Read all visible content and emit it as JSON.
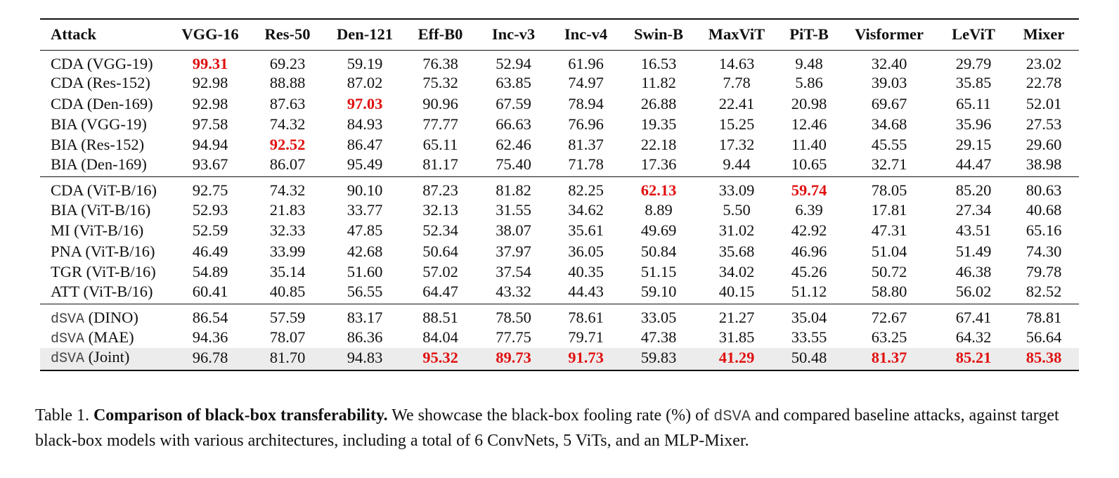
{
  "table": {
    "headers": [
      "Attack",
      "VGG-16",
      "Res-50",
      "Den-121",
      "Eff-B0",
      "Inc-v3",
      "Inc-v4",
      "Swin-B",
      "MaxViT",
      "PiT-B",
      "Visformer",
      "LeViT",
      "Mixer"
    ],
    "groups": [
      [
        {
          "name": "CDA (VGG-19)",
          "values": [
            "99.31",
            "69.23",
            "59.19",
            "76.38",
            "52.94",
            "61.96",
            "16.53",
            "14.63",
            "9.48",
            "32.40",
            "29.79",
            "23.02"
          ],
          "best": [
            0
          ]
        },
        {
          "name": "CDA (Res-152)",
          "values": [
            "92.98",
            "88.88",
            "87.02",
            "75.32",
            "63.85",
            "74.97",
            "11.82",
            "7.78",
            "5.86",
            "39.03",
            "35.85",
            "22.78"
          ],
          "best": []
        },
        {
          "name": "CDA (Den-169)",
          "values": [
            "92.98",
            "87.63",
            "97.03",
            "90.96",
            "67.59",
            "78.94",
            "26.88",
            "22.41",
            "20.98",
            "69.67",
            "65.11",
            "52.01"
          ],
          "best": [
            2
          ]
        },
        {
          "name": "BIA (VGG-19)",
          "values": [
            "97.58",
            "74.32",
            "84.93",
            "77.77",
            "66.63",
            "76.96",
            "19.35",
            "15.25",
            "12.46",
            "34.68",
            "35.96",
            "27.53"
          ],
          "best": []
        },
        {
          "name": "BIA (Res-152)",
          "values": [
            "94.94",
            "92.52",
            "86.47",
            "65.11",
            "62.46",
            "81.37",
            "22.18",
            "17.32",
            "11.40",
            "45.55",
            "29.15",
            "29.60"
          ],
          "best": [
            1
          ]
        },
        {
          "name": "BIA (Den-169)",
          "values": [
            "93.67",
            "86.07",
            "95.49",
            "81.17",
            "75.40",
            "71.78",
            "17.36",
            "9.44",
            "10.65",
            "32.71",
            "44.47",
            "38.98"
          ],
          "best": []
        }
      ],
      [
        {
          "name": "CDA (ViT-B/16)",
          "values": [
            "92.75",
            "74.32",
            "90.10",
            "87.23",
            "81.82",
            "82.25",
            "62.13",
            "33.09",
            "59.74",
            "78.05",
            "85.20",
            "80.63"
          ],
          "best": [
            6,
            8
          ]
        },
        {
          "name": "BIA (ViT-B/16)",
          "values": [
            "52.93",
            "21.83",
            "33.77",
            "32.13",
            "31.55",
            "34.62",
            "8.89",
            "5.50",
            "6.39",
            "17.81",
            "27.34",
            "40.68"
          ],
          "best": []
        },
        {
          "name": "MI (ViT-B/16)",
          "values": [
            "52.59",
            "32.33",
            "47.85",
            "52.34",
            "38.07",
            "35.61",
            "49.69",
            "31.02",
            "42.92",
            "47.31",
            "43.51",
            "65.16"
          ],
          "best": []
        },
        {
          "name": "PNA (ViT-B/16)",
          "values": [
            "46.49",
            "33.99",
            "42.68",
            "50.64",
            "37.97",
            "36.05",
            "50.84",
            "35.68",
            "46.96",
            "51.04",
            "51.49",
            "74.30"
          ],
          "best": []
        },
        {
          "name": "TGR (ViT-B/16)",
          "values": [
            "54.89",
            "35.14",
            "51.60",
            "57.02",
            "37.54",
            "40.35",
            "51.15",
            "34.02",
            "45.26",
            "50.72",
            "46.38",
            "79.78"
          ],
          "best": []
        },
        {
          "name": "ATT (ViT-B/16)",
          "values": [
            "60.41",
            "40.85",
            "56.55",
            "64.47",
            "43.32",
            "44.43",
            "59.10",
            "40.15",
            "51.12",
            "58.80",
            "56.02",
            "82.52"
          ],
          "best": []
        }
      ],
      [
        {
          "mono": "dSVA",
          "suffix": " (DINO)",
          "values": [
            "86.54",
            "57.59",
            "83.17",
            "88.51",
            "78.50",
            "78.61",
            "33.05",
            "21.27",
            "35.04",
            "72.67",
            "67.41",
            "78.81"
          ],
          "best": []
        },
        {
          "mono": "dSVA",
          "suffix": " (MAE)",
          "values": [
            "94.36",
            "78.07",
            "86.36",
            "84.04",
            "77.75",
            "79.71",
            "47.38",
            "31.85",
            "33.55",
            "63.25",
            "64.32",
            "56.64"
          ],
          "best": []
        },
        {
          "mono": "dSVA",
          "suffix": " (Joint)",
          "values": [
            "96.78",
            "81.70",
            "94.83",
            "95.32",
            "89.73",
            "91.73",
            "59.83",
            "41.29",
            "50.48",
            "81.37",
            "85.21",
            "85.38"
          ],
          "best": [
            3,
            4,
            5,
            7,
            9,
            10,
            11
          ],
          "highlight": true
        }
      ]
    ]
  },
  "caption": {
    "label": "Table 1. ",
    "bold": "Comparison of black-box transferability.",
    "text_a": " We showcase the black-box fooling rate (%) of ",
    "mono": "dSVA",
    "text_b": " and compared baseline attacks, against target black-box models with various architectures, including a total of 6 ConvNets, 5 ViTs, and an MLP-Mixer."
  },
  "colors": {
    "best": "#e01010",
    "highlight_row": "#ececec"
  }
}
